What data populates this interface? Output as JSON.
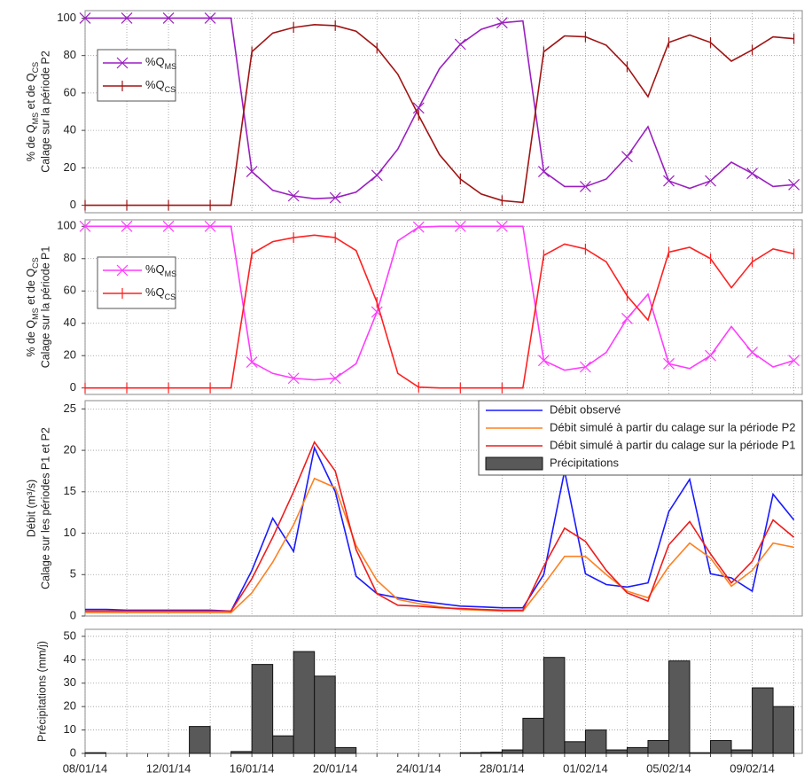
{
  "chart_data": [
    {
      "type": "line",
      "ylabel": {
        "line1": [
          "% de Q",
          "MS",
          " et de Q",
          "CS"
        ],
        "line2": "Calage sur la période P2"
      },
      "ylim": [
        -4,
        104
      ],
      "yticks": [
        0,
        20,
        40,
        60,
        80,
        100
      ],
      "grid": true,
      "series": [
        {
          "name": "%Q",
          "name_sub": "MS",
          "color": "#9a1fc0",
          "marker": "x",
          "values": [
            100,
            100,
            100,
            100,
            100,
            100,
            100,
            100,
            18,
            8,
            5,
            3.5,
            4,
            7,
            16,
            30,
            52,
            73,
            86,
            94,
            97.5,
            98.5,
            18,
            10,
            10,
            14,
            26,
            42,
            13,
            9,
            13,
            23,
            17,
            10,
            11
          ]
        },
        {
          "name": "%Q",
          "name_sub": "CS",
          "color": "#a01414",
          "marker": "|",
          "values": [
            0,
            0,
            0,
            0,
            0,
            0,
            0,
            0,
            82,
            92,
            95,
            96.5,
            96,
            93,
            84,
            70,
            48,
            27,
            14,
            6,
            2.5,
            1.5,
            82,
            90.5,
            90,
            85.5,
            74,
            58,
            87,
            91,
            87,
            77,
            83,
            90,
            89
          ]
        }
      ]
    },
    {
      "type": "line",
      "ylabel": {
        "line1": [
          "% de Q",
          "MS",
          " et de Q",
          "CS"
        ],
        "line2": "Calage sur la période P1"
      },
      "ylim": [
        -4,
        104
      ],
      "yticks": [
        0,
        20,
        40,
        60,
        80,
        100
      ],
      "grid": true,
      "series": [
        {
          "name": "%Q",
          "name_sub": "MS",
          "color": "#ff3cff",
          "marker": "x",
          "values": [
            100,
            100,
            100,
            100,
            100,
            100,
            100,
            100,
            16,
            9,
            6,
            5,
            6,
            15,
            47,
            91,
            99.5,
            100,
            100,
            100,
            100,
            100,
            17,
            11,
            13,
            22,
            43,
            58,
            15,
            12,
            20,
            38,
            22,
            13,
            17
          ]
        },
        {
          "name": "%Q",
          "name_sub": "CS",
          "color": "#ff2020",
          "marker": "|",
          "values": [
            0,
            0,
            0,
            0,
            0,
            0,
            0,
            0,
            83,
            90.5,
            93,
            94.5,
            93,
            85,
            53,
            9,
            0.5,
            0,
            0,
            0,
            0,
            0,
            82,
            89,
            86,
            78,
            57,
            42,
            84,
            87,
            80,
            62,
            78,
            86,
            83
          ]
        }
      ]
    },
    {
      "type": "line",
      "ylabel": {
        "line1": "Débit (m³/s)",
        "line2": "Calage sur les périodes P1 et P2"
      },
      "ylim": [
        0,
        26
      ],
      "yticks": [
        0,
        5,
        10,
        15,
        20,
        25
      ],
      "grid": true,
      "legend": "top-right",
      "series": [
        {
          "name": "Débit observé",
          "color": "#1a1aff",
          "values": [
            0.8,
            0.8,
            0.7,
            0.7,
            0.7,
            0.7,
            0.7,
            0.6,
            5.5,
            11.8,
            7.8,
            20.3,
            15,
            4.8,
            2.7,
            2.2,
            1.8,
            1.5,
            1.2,
            1.1,
            1,
            1,
            5,
            17.5,
            5.1,
            3.8,
            3.5,
            4,
            12.6,
            16.5,
            5.1,
            4.6,
            3,
            14.7,
            11.6
          ]
        },
        {
          "name": "Débit simulé à partir du calage sur la période P2",
          "color": "#ff8020",
          "values": [
            0.4,
            0.4,
            0.4,
            0.4,
            0.4,
            0.4,
            0.4,
            0.4,
            2.8,
            6.5,
            11,
            16.6,
            15.5,
            8.5,
            4.3,
            2,
            1.5,
            1.1,
            0.8,
            0.7,
            0.6,
            0.6,
            3.8,
            7.2,
            7.2,
            5,
            3,
            2.2,
            6,
            8.8,
            7,
            3.6,
            5.5,
            8.8,
            8.3
          ]
        },
        {
          "name": "Débit simulé à partir du calage sur la période P1",
          "color": "#ee1c1c",
          "values": [
            0.6,
            0.6,
            0.6,
            0.6,
            0.6,
            0.6,
            0.6,
            0.6,
            4.5,
            9.5,
            15,
            21,
            17.5,
            8,
            2.7,
            1.3,
            1.2,
            1,
            0.9,
            0.8,
            0.7,
            0.7,
            6,
            10.6,
            9,
            5.5,
            2.8,
            1.8,
            8.6,
            11.4,
            7.5,
            4,
            6.6,
            11.6,
            9.5
          ]
        }
      ]
    },
    {
      "type": "bar",
      "ylabel": {
        "line1": "Précipitations (mm/j)"
      },
      "ylim": [
        0,
        53
      ],
      "yticks": [
        0,
        10,
        20,
        30,
        40,
        50
      ],
      "grid": true,
      "categories": [
        "08/01/14",
        null,
        null,
        null,
        "12/01/14",
        null,
        null,
        null,
        "16/01/14",
        null,
        null,
        null,
        "20/01/14",
        null,
        null,
        null,
        "24/01/14",
        null,
        null,
        null,
        "28/01/14",
        null,
        null,
        null,
        "01/02/14",
        null,
        null,
        null,
        "05/02/14",
        null,
        null,
        null,
        "09/02/14",
        null,
        null
      ],
      "series": [
        {
          "name": "Précipitations",
          "color": "#595959",
          "values": [
            0.3,
            0,
            0,
            0,
            0,
            11.5,
            0,
            0.8,
            38,
            7.5,
            43.5,
            33,
            2.5,
            0,
            0,
            0,
            0,
            0,
            0.3,
            0.5,
            1.5,
            15,
            41,
            5,
            10,
            1.5,
            2.5,
            5.5,
            39.5,
            0.3,
            5.5,
            1.5,
            28,
            20,
            null
          ]
        }
      ]
    }
  ]
}
